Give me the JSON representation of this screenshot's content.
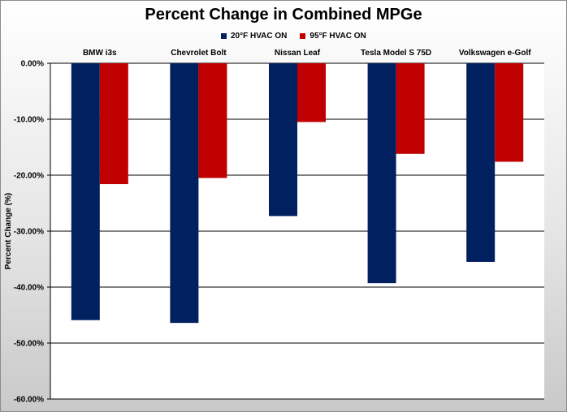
{
  "chart_data": {
    "type": "bar",
    "title": "Percent Change in Combined MPGe",
    "xlabel": "",
    "ylabel": "Percent Change (%)",
    "ylim": [
      -60,
      0
    ],
    "yticks": [
      "0.00%",
      "-10.00%",
      "-20.00%",
      "-30.00%",
      "-40.00%",
      "-50.00%",
      "-60.00%"
    ],
    "legend_position": "top",
    "grid": true,
    "categories": [
      "BMW i3s",
      "Chevrolet Bolt",
      "Nissan Leaf",
      "Tesla Model S 75D",
      "Volkswagen e-Golf"
    ],
    "series": [
      {
        "name": "20°F HVAC ON",
        "color": "#002060",
        "values": [
          -45.9,
          -46.4,
          -27.3,
          -39.3,
          -35.5
        ]
      },
      {
        "name": "95°F HVAC ON",
        "color": "#c00000",
        "values": [
          -21.6,
          -20.5,
          -10.5,
          -16.2,
          -17.6
        ]
      }
    ]
  }
}
